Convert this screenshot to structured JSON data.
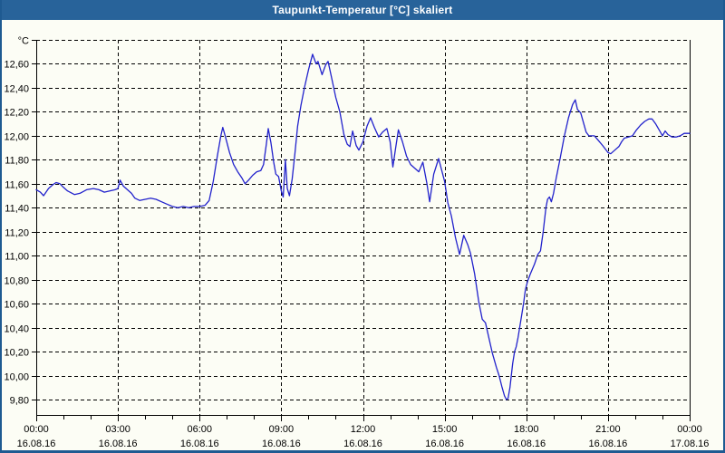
{
  "window": {
    "title": "Taupunkt-Temperatur [°C] skaliert"
  },
  "colors": {
    "title_bar": "#28639a",
    "window_border": "#1e5a91",
    "background": "#fcfdf5",
    "line": "#2222cc",
    "grid": "#000000",
    "text": "#000000"
  },
  "chart_data": {
    "type": "line",
    "title": "Taupunkt-Temperatur [°C] skaliert",
    "xlabel": "",
    "ylabel": "°C",
    "unit_label": "°C",
    "grid": "dashed",
    "legend": "none",
    "ylim": [
      9.67,
      12.8
    ],
    "xlim_hours": [
      0,
      24
    ],
    "y_gridlines": [
      {
        "v": 12.8,
        "label": "°C"
      },
      {
        "v": 12.6,
        "label": "12,60"
      },
      {
        "v": 12.4,
        "label": "12,40"
      },
      {
        "v": 12.2,
        "label": "12,20"
      },
      {
        "v": 12.0,
        "label": "12,00"
      },
      {
        "v": 11.8,
        "label": "11,80"
      },
      {
        "v": 11.6,
        "label": "11,60"
      },
      {
        "v": 11.4,
        "label": "11,40"
      },
      {
        "v": 11.2,
        "label": "11,20"
      },
      {
        "v": 11.0,
        "label": "11,00"
      },
      {
        "v": 10.8,
        "label": "10,80"
      },
      {
        "v": 10.6,
        "label": "10,60"
      },
      {
        "v": 10.4,
        "label": "10,40"
      },
      {
        "v": 10.2,
        "label": "10,20"
      },
      {
        "v": 10.0,
        "label": "10,00"
      },
      {
        "v": 9.8,
        "label": "9,80"
      }
    ],
    "x_ticks": [
      {
        "h": 0,
        "time": "00:00",
        "date": "16.08.16"
      },
      {
        "h": 3,
        "time": "03:00",
        "date": "16.08.16"
      },
      {
        "h": 6,
        "time": "06:00",
        "date": "16.08.16"
      },
      {
        "h": 9,
        "time": "09:00",
        "date": "16.08.16"
      },
      {
        "h": 12,
        "time": "12:00",
        "date": "16.08.16"
      },
      {
        "h": 15,
        "time": "15:00",
        "date": "16.08.16"
      },
      {
        "h": 18,
        "time": "18:00",
        "date": "16.08.16"
      },
      {
        "h": 21,
        "time": "21:00",
        "date": "16.08.16"
      },
      {
        "h": 24,
        "time": "00:00",
        "date": "17.08.16"
      }
    ],
    "x_gridline_hours": [
      3,
      6,
      9,
      12,
      15,
      18,
      21
    ],
    "minor_tick_every_hours": 1,
    "series": [
      {
        "name": "Taupunkt-Temperatur",
        "color": "#2222cc",
        "points": [
          [
            0,
            11.55
          ],
          [
            0.15,
            11.53
          ],
          [
            0.27,
            11.5
          ],
          [
            0.45,
            11.56
          ],
          [
            0.6,
            11.59
          ],
          [
            0.73,
            11.61
          ],
          [
            0.87,
            11.6
          ],
          [
            1,
            11.57
          ],
          [
            1.15,
            11.54
          ],
          [
            1.4,
            11.51
          ],
          [
            1.6,
            11.52
          ],
          [
            1.85,
            11.55
          ],
          [
            2.1,
            11.56
          ],
          [
            2.3,
            11.55
          ],
          [
            2.5,
            11.53
          ],
          [
            2.7,
            11.54
          ],
          [
            2.9,
            11.55
          ],
          [
            3,
            11.56
          ],
          [
            3.08,
            11.63
          ],
          [
            3.2,
            11.58
          ],
          [
            3.35,
            11.55
          ],
          [
            3.5,
            11.52
          ],
          [
            3.62,
            11.48
          ],
          [
            3.8,
            11.46
          ],
          [
            4,
            11.47
          ],
          [
            4.2,
            11.48
          ],
          [
            4.4,
            11.47
          ],
          [
            4.6,
            11.45
          ],
          [
            4.8,
            11.43
          ],
          [
            5,
            11.41
          ],
          [
            5.2,
            11.4
          ],
          [
            5.4,
            11.41
          ],
          [
            5.6,
            11.4
          ],
          [
            5.8,
            11.41
          ],
          [
            6,
            11.41
          ],
          [
            6.2,
            11.42
          ],
          [
            6.35,
            11.46
          ],
          [
            6.5,
            11.62
          ],
          [
            6.65,
            11.83
          ],
          [
            6.78,
            12
          ],
          [
            6.85,
            12.07
          ],
          [
            6.95,
            11.99
          ],
          [
            7.1,
            11.86
          ],
          [
            7.25,
            11.76
          ],
          [
            7.4,
            11.7
          ],
          [
            7.55,
            11.65
          ],
          [
            7.67,
            11.6
          ],
          [
            7.8,
            11.63
          ],
          [
            7.95,
            11.67
          ],
          [
            8.1,
            11.7
          ],
          [
            8.25,
            11.71
          ],
          [
            8.35,
            11.76
          ],
          [
            8.45,
            11.93
          ],
          [
            8.52,
            12.06
          ],
          [
            8.62,
            11.94
          ],
          [
            8.72,
            11.78
          ],
          [
            8.8,
            11.68
          ],
          [
            8.9,
            11.66
          ],
          [
            9,
            11.54
          ],
          [
            9.07,
            11.49
          ],
          [
            9.15,
            11.8
          ],
          [
            9.22,
            11.56
          ],
          [
            9.3,
            11.5
          ],
          [
            9.4,
            11.64
          ],
          [
            9.5,
            11.85
          ],
          [
            9.6,
            12.08
          ],
          [
            9.72,
            12.25
          ],
          [
            9.85,
            12.4
          ],
          [
            10,
            12.55
          ],
          [
            10.15,
            12.68
          ],
          [
            10.28,
            12.6
          ],
          [
            10.35,
            12.62
          ],
          [
            10.5,
            12.51
          ],
          [
            10.63,
            12.59
          ],
          [
            10.72,
            12.62
          ],
          [
            10.85,
            12.48
          ],
          [
            11,
            12.32
          ],
          [
            11.15,
            12.2
          ],
          [
            11.3,
            12.01
          ],
          [
            11.42,
            11.93
          ],
          [
            11.52,
            11.91
          ],
          [
            11.62,
            12.04
          ],
          [
            11.75,
            11.92
          ],
          [
            11.85,
            11.88
          ],
          [
            12,
            11.95
          ],
          [
            12.15,
            12.08
          ],
          [
            12.28,
            12.15
          ],
          [
            12.42,
            12.07
          ],
          [
            12.58,
            11.99
          ],
          [
            12.72,
            12.03
          ],
          [
            12.88,
            12.06
          ],
          [
            13,
            11.95
          ],
          [
            13.1,
            11.74
          ],
          [
            13.2,
            11.9
          ],
          [
            13.3,
            12.05
          ],
          [
            13.45,
            11.95
          ],
          [
            13.6,
            11.83
          ],
          [
            13.75,
            11.76
          ],
          [
            13.9,
            11.73
          ],
          [
            14.05,
            11.7
          ],
          [
            14.2,
            11.78
          ],
          [
            14.35,
            11.6
          ],
          [
            14.45,
            11.45
          ],
          [
            14.6,
            11.68
          ],
          [
            14.78,
            11.81
          ],
          [
            15,
            11.62
          ],
          [
            15.12,
            11.44
          ],
          [
            15.25,
            11.33
          ],
          [
            15.4,
            11.15
          ],
          [
            15.55,
            11.01
          ],
          [
            15.7,
            11.17
          ],
          [
            15.85,
            11.09
          ],
          [
            15.95,
            11.02
          ],
          [
            16.1,
            10.85
          ],
          [
            16.25,
            10.62
          ],
          [
            16.38,
            10.47
          ],
          [
            16.5,
            10.44
          ],
          [
            16.62,
            10.32
          ],
          [
            16.75,
            10.19
          ],
          [
            16.9,
            10.07
          ],
          [
            17,
            10
          ],
          [
            17.1,
            9.91
          ],
          [
            17.2,
            9.83
          ],
          [
            17.27,
            9.8
          ],
          [
            17.33,
            9.81
          ],
          [
            17.4,
            9.9
          ],
          [
            17.45,
            10
          ],
          [
            17.5,
            10.1
          ],
          [
            17.57,
            10.2
          ],
          [
            17.63,
            10.24
          ],
          [
            17.7,
            10.32
          ],
          [
            17.8,
            10.46
          ],
          [
            17.9,
            10.6
          ],
          [
            17.97,
            10.72
          ],
          [
            18.05,
            10.79
          ],
          [
            18.15,
            10.85
          ],
          [
            18.3,
            10.93
          ],
          [
            18.42,
            11.01
          ],
          [
            18.52,
            11.04
          ],
          [
            18.62,
            11.2
          ],
          [
            18.72,
            11.4
          ],
          [
            18.78,
            11.47
          ],
          [
            18.85,
            11.49
          ],
          [
            18.92,
            11.45
          ],
          [
            19,
            11.52
          ],
          [
            19.1,
            11.65
          ],
          [
            19.25,
            11.82
          ],
          [
            19.4,
            12
          ],
          [
            19.55,
            12.15
          ],
          [
            19.7,
            12.26
          ],
          [
            19.8,
            12.3
          ],
          [
            19.88,
            12.22
          ],
          [
            20,
            12.19
          ],
          [
            20.1,
            12.11
          ],
          [
            20.2,
            12.03
          ],
          [
            20.3,
            12
          ],
          [
            20.5,
            12
          ],
          [
            20.65,
            11.96
          ],
          [
            20.8,
            11.92
          ],
          [
            21,
            11.86
          ],
          [
            21.1,
            11.85
          ],
          [
            21.25,
            11.88
          ],
          [
            21.4,
            11.91
          ],
          [
            21.5,
            11.95
          ],
          [
            21.6,
            11.98
          ],
          [
            21.75,
            11.99
          ],
          [
            21.9,
            12
          ],
          [
            22.05,
            12.05
          ],
          [
            22.2,
            12.09
          ],
          [
            22.35,
            12.12
          ],
          [
            22.5,
            12.14
          ],
          [
            22.62,
            12.14
          ],
          [
            22.75,
            12.1
          ],
          [
            22.9,
            12.04
          ],
          [
            23,
            12
          ],
          [
            23.1,
            12.04
          ],
          [
            23.2,
            12.01
          ],
          [
            23.35,
            11.99
          ],
          [
            23.5,
            11.99
          ],
          [
            23.65,
            12
          ],
          [
            23.8,
            12.02
          ],
          [
            24,
            12.02
          ]
        ]
      }
    ]
  }
}
